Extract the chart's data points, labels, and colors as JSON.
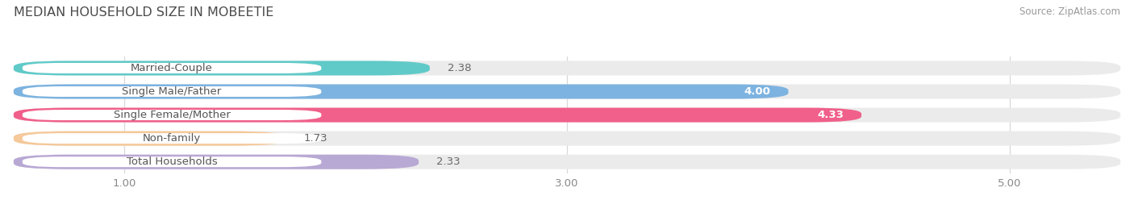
{
  "title": "MEDIAN HOUSEHOLD SIZE IN MOBEETIE",
  "source": "Source: ZipAtlas.com",
  "categories": [
    "Married-Couple",
    "Single Male/Father",
    "Single Female/Mother",
    "Non-family",
    "Total Households"
  ],
  "values": [
    2.38,
    4.0,
    4.33,
    1.73,
    2.33
  ],
  "bar_colors": [
    "#60cac8",
    "#7db3e0",
    "#f0608a",
    "#f5c99a",
    "#b8a8d4"
  ],
  "background_color": "#ffffff",
  "bar_bg_color": "#ebebeb",
  "xmin": 0.5,
  "xmax": 5.5,
  "xticks": [
    1.0,
    3.0,
    5.0
  ],
  "bar_height": 0.62,
  "label_fontsize": 9.5,
  "value_fontsize": 9.5,
  "title_fontsize": 11.5,
  "source_fontsize": 8.5
}
